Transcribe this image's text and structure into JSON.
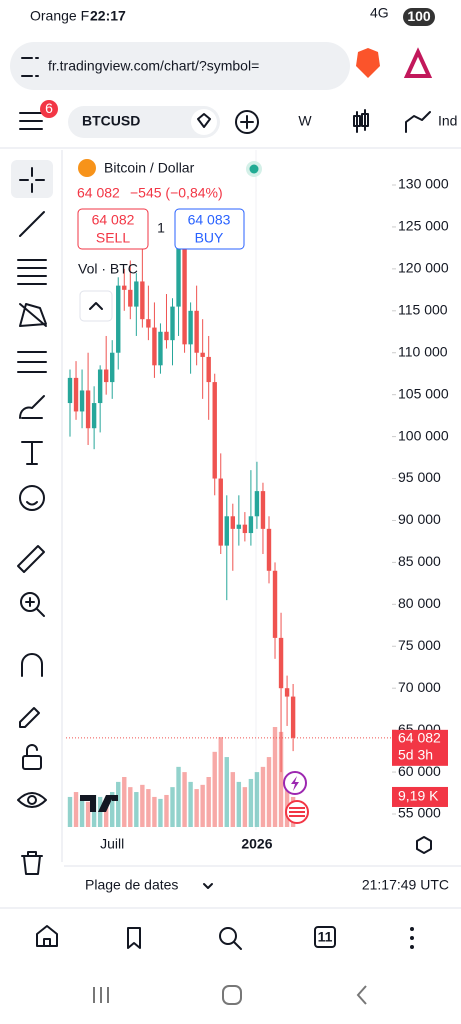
{
  "status_bar": {
    "carrier": "Orange F",
    "time": "22:17",
    "network": "4G",
    "battery": "100"
  },
  "browser": {
    "url": "fr.tradingview.com/chart/?symbol="
  },
  "toolbar": {
    "notifications": "6",
    "symbol": "BTCUSD",
    "interval": "W",
    "indicators": "Ind"
  },
  "chart_data": {
    "type": "candlestick",
    "title": "Bitcoin / Dollar",
    "price": "64 082",
    "change": "−545 (−0,84%)",
    "sell": {
      "price": "64 082",
      "label": "SELL"
    },
    "spread": "1",
    "buy": {
      "price": "64 083",
      "label": "BUY"
    },
    "volume_title": "Vol · BTC",
    "categories": [
      null,
      null,
      null,
      null,
      null,
      null,
      null,
      "Juill",
      null,
      null,
      null,
      null,
      null,
      null,
      null,
      null,
      null,
      null,
      null,
      null,
      null,
      null,
      null,
      null,
      null,
      null,
      null,
      null,
      null,
      null,
      null,
      "2026",
      null,
      null,
      null,
      null,
      null,
      null
    ],
    "open": [
      104000,
      107000,
      103000,
      105500,
      101000,
      104000,
      108000,
      106500,
      110000,
      118000,
      117500,
      115500,
      118500,
      114000,
      113000,
      108500,
      112500,
      111500,
      115500,
      123500,
      111000,
      115000,
      110000,
      109500,
      106500,
      95000,
      87000,
      90500,
      89000,
      89500,
      88500,
      90500,
      93500,
      89000,
      84000,
      76000,
      70000,
      69000
    ],
    "high": [
      108000,
      109000,
      108000,
      110000,
      106000,
      108500,
      112000,
      111500,
      119000,
      120000,
      121000,
      119500,
      123000,
      118000,
      116000,
      113500,
      117000,
      116500,
      126000,
      126000,
      116000,
      118000,
      114000,
      112000,
      107500,
      98000,
      93000,
      92000,
      93000,
      91000,
      96000,
      97000,
      94500,
      90500,
      85000,
      79000,
      71500,
      70500
    ],
    "low": [
      100000,
      102000,
      101000,
      99000,
      98500,
      100500,
      105000,
      104500,
      108000,
      115000,
      114000,
      112000,
      113000,
      111500,
      107000,
      107500,
      110500,
      108500,
      112000,
      110000,
      107500,
      108500,
      104500,
      102000,
      93000,
      86000,
      80500,
      84000,
      87000,
      87500,
      87000,
      89000,
      86000,
      82500,
      73500,
      60000,
      65500,
      62500
    ],
    "close": [
      107000,
      103000,
      105500,
      101000,
      104000,
      108000,
      106500,
      110000,
      118000,
      117500,
      115500,
      118500,
      114000,
      113000,
      108500,
      112500,
      111500,
      115500,
      123500,
      111000,
      115000,
      110000,
      109500,
      106500,
      95000,
      87000,
      90500,
      89000,
      89500,
      88500,
      90500,
      93500,
      89000,
      84000,
      76000,
      70000,
      69000,
      64082
    ],
    "volume": [
      9200,
      10700,
      8600,
      7700,
      9800,
      9200,
      8600,
      10700,
      13800,
      15300,
      12200,
      10700,
      12900,
      11600,
      9200,
      8600,
      9800,
      12200,
      18400,
      16800,
      13800,
      11600,
      12900,
      15300,
      23000,
      27500,
      21400,
      16800,
      13800,
      12200,
      14700,
      16800,
      18400,
      21400,
      30600,
      29100,
      15300,
      9190
    ],
    "volume_value_labels": {
      "37": "9,19 K"
    },
    "last_price_label": "64 082",
    "countdown": "5d 3h",
    "up_color": "#26a69a",
    "down_color": "#ef5350",
    "ylim": [
      55000,
      130000
    ],
    "yticks": [
      {
        "value": 130000,
        "label": "130 000"
      },
      {
        "value": 125000,
        "label": "125 000"
      },
      {
        "value": 120000,
        "label": "120 000"
      },
      {
        "value": 115000,
        "label": "115 000"
      },
      {
        "value": 110000,
        "label": "110 000"
      },
      {
        "value": 105000,
        "label": "105 000"
      },
      {
        "value": 100000,
        "label": "100 000"
      },
      {
        "value": 95000,
        "label": "95 000"
      },
      {
        "value": 90000,
        "label": "90 000"
      },
      {
        "value": 85000,
        "label": "85 000"
      },
      {
        "value": 80000,
        "label": "80 000"
      },
      {
        "value": 75000,
        "label": "75 000"
      },
      {
        "value": 70000,
        "label": "70 000"
      },
      {
        "value": 65000,
        "label": "65 000"
      },
      {
        "value": 60000,
        "label": "60 000"
      },
      {
        "value": 55000,
        "label": "55 000"
      }
    ]
  },
  "footer": {
    "range": "Plage de dates",
    "time": "21:17:49 UTC"
  },
  "bottom_nav": {
    "tabs": "11"
  }
}
